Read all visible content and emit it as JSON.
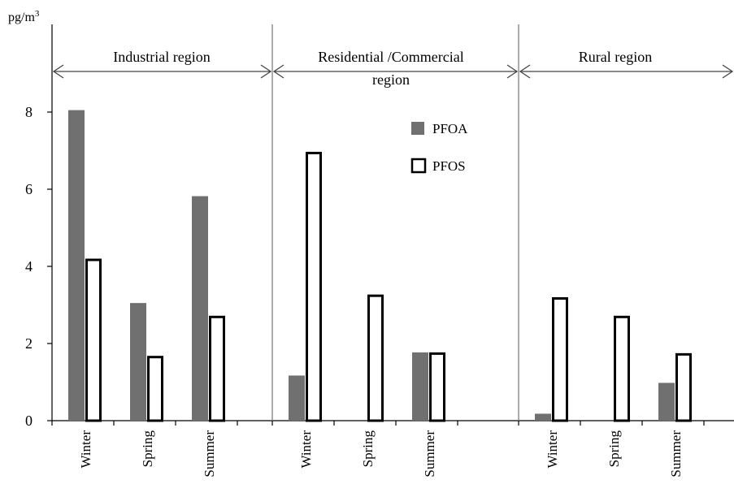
{
  "chart_data": {
    "type": "bar",
    "ylabel_unit": {
      "base": "pg/m",
      "exp": "3"
    },
    "yticks": [
      "0",
      "2",
      "4",
      "6",
      "8"
    ],
    "ylim": [
      0,
      9.5
    ],
    "grid": false,
    "legend_position": "upper-middle",
    "legend": {
      "pfoa": "PFOA",
      "pfos": "PFOS"
    },
    "colors": {
      "pfoa": "#707070",
      "pfos": "#ffffff",
      "axis": "#000000",
      "divider": "#808080"
    },
    "groups": [
      {
        "region_lines": [
          "Industrial region"
        ],
        "categories": [
          "Winter",
          "Spring",
          "Summer"
        ],
        "pfoa": [
          8.05,
          3.05,
          5.82
        ],
        "pfos": [
          4.2,
          1.68,
          2.72
        ]
      },
      {
        "region_lines": [
          "Residential /Commercial",
          "region"
        ],
        "categories": [
          "Winter",
          "Spring",
          "Summer"
        ],
        "pfoa": [
          1.17,
          null,
          1.77
        ],
        "pfos": [
          6.97,
          3.27,
          1.77
        ]
      },
      {
        "region_lines": [
          "Rural region"
        ],
        "categories": [
          "Winter",
          "Spring",
          "Summer"
        ],
        "pfoa": [
          0.18,
          null,
          0.98
        ],
        "pfos": [
          3.2,
          2.72,
          1.75
        ]
      }
    ]
  }
}
